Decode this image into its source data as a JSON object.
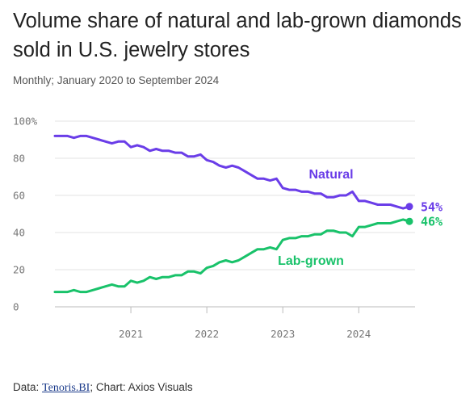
{
  "header": {
    "title": "Volume share of natural and lab-grown diamonds sold in U.S. jewelry stores",
    "subtitle": "Monthly; January 2020 to September 2024"
  },
  "footer": {
    "data_prefix": "Data: ",
    "source_link": "Tenoris.BI",
    "suffix": "; Chart: Axios Visuals"
  },
  "colors": {
    "natural": "#6a3de8",
    "lab_grown": "#19c26a",
    "grid": "#e3e3e3",
    "axis": "#bbbbbb"
  },
  "chart_data": {
    "type": "line",
    "title": "Volume share of natural and lab-grown diamonds sold in U.S. jewelry stores",
    "subtitle": "Monthly; January 2020 to September 2024",
    "x_start": "2020-01",
    "x_end": "2024-09",
    "x_ticks": [
      "2021",
      "2022",
      "2023",
      "2024"
    ],
    "ylim": [
      0,
      100
    ],
    "y_ticks": [
      0,
      20,
      40,
      60,
      80,
      100
    ],
    "y_tick_labels": [
      "0",
      "20",
      "40",
      "60",
      "80",
      "100%"
    ],
    "grid": true,
    "series": [
      {
        "name": "Natural",
        "end_label": "54%",
        "values": [
          92,
          92,
          92,
          91,
          92,
          92,
          91,
          90,
          89,
          88,
          89,
          89,
          86,
          87,
          86,
          84,
          85,
          84,
          84,
          83,
          83,
          81,
          81,
          82,
          79,
          78,
          76,
          75,
          76,
          75,
          73,
          71,
          69,
          69,
          68,
          69,
          64,
          63,
          63,
          62,
          62,
          61,
          61,
          59,
          59,
          60,
          60,
          62,
          57,
          57,
          56,
          55,
          55,
          55,
          54,
          53,
          54
        ]
      },
      {
        "name": "Lab-grown",
        "end_label": "46%",
        "values": [
          8,
          8,
          8,
          9,
          8,
          8,
          9,
          10,
          11,
          12,
          11,
          11,
          14,
          13,
          14,
          16,
          15,
          16,
          16,
          17,
          17,
          19,
          19,
          18,
          21,
          22,
          24,
          25,
          24,
          25,
          27,
          29,
          31,
          31,
          32,
          31,
          36,
          37,
          37,
          38,
          38,
          39,
          39,
          41,
          41,
          40,
          40,
          38,
          43,
          43,
          44,
          45,
          45,
          45,
          46,
          47,
          46
        ]
      }
    ]
  }
}
